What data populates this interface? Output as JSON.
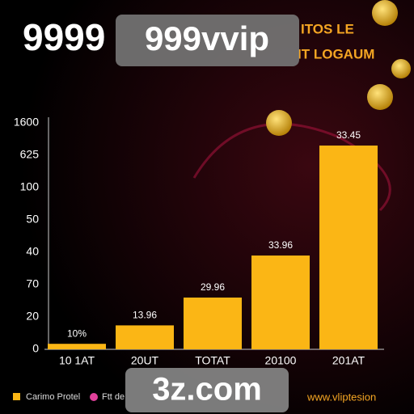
{
  "chart_data": {
    "type": "bar",
    "title": "9999",
    "subtitle": [
      "ITOS LE",
      "IT LOGAUM"
    ],
    "categories": [
      "10 1AT",
      "20UT",
      "TOTAT",
      "20100",
      "201AT"
    ],
    "series": [
      {
        "name": "Carimo Protel",
        "color": "#fbb615",
        "values": [
          0.17,
          0.74,
          1.6,
          2.9,
          6.3
        ]
      }
    ],
    "extra_legend": {
      "name": "Ftt de",
      "color": "#e0409a"
    },
    "annotations": [
      "10%",
      "13.96",
      "29.96",
      "33.96",
      "33.45"
    ],
    "ylim": [
      0,
      7.2
    ],
    "yticks": [
      {
        "value": 0,
        "label": "0"
      },
      {
        "value": 1,
        "label": "20"
      },
      {
        "value": 2,
        "label": "70"
      },
      {
        "value": 3,
        "label": "40"
      },
      {
        "value": 4,
        "label": "50"
      },
      {
        "value": 5,
        "label": "100"
      },
      {
        "value": 6,
        "label": "625"
      },
      {
        "value": 7,
        "label": "1600"
      }
    ],
    "watermarks": [
      "999vvip",
      "3z.com"
    ],
    "footer": "www.vliptesion"
  }
}
